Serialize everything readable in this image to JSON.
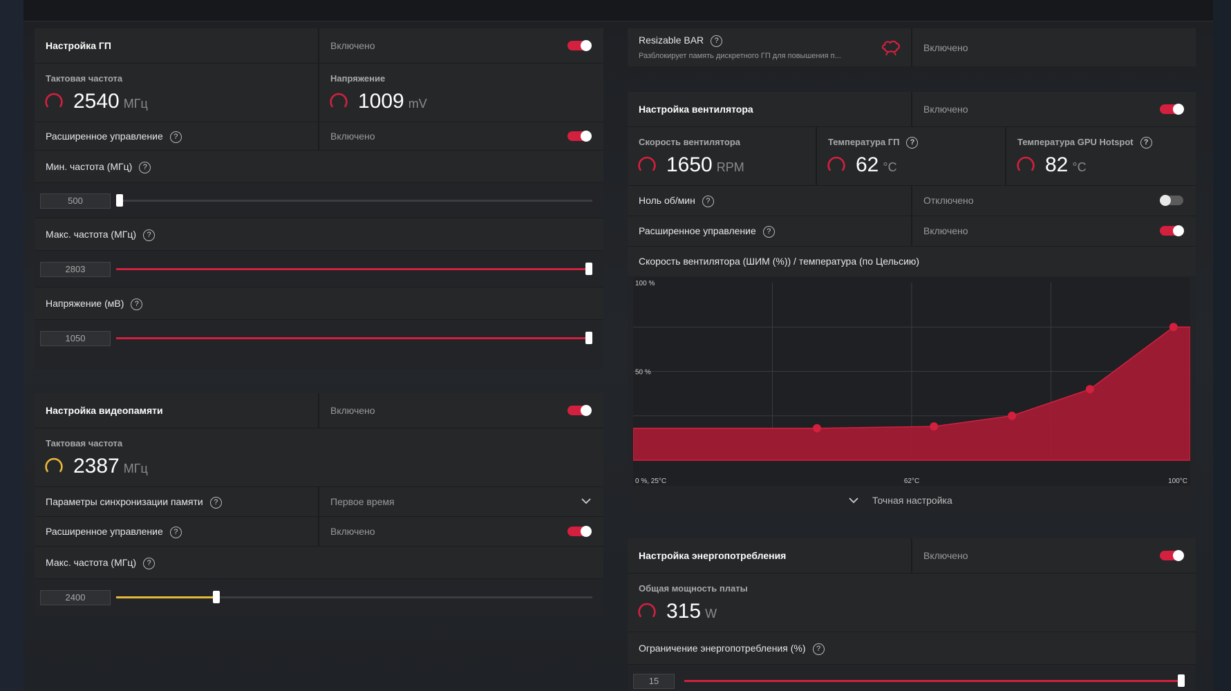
{
  "colors": {
    "accent_red": "#d3203f",
    "accent_yellow": "#e8b83a",
    "bg": "#222427"
  },
  "gpu": {
    "header_label": "Настройка ГП",
    "header_status": "Включено",
    "clock_label": "Тактовая частота",
    "clock_value": "2540",
    "clock_unit": "МГц",
    "voltage_label": "Напряжение",
    "voltage_value": "1009",
    "voltage_unit": "mV",
    "advanced_label": "Расширенное управление",
    "advanced_status": "Включено",
    "min_freq_label": "Мин. частота (МГц)",
    "min_freq_value": "500",
    "min_freq_fraction": 0.0,
    "max_freq_label": "Макс. частота (МГц)",
    "max_freq_value": "2803",
    "max_freq_fraction": 1.0,
    "volt_mv_label": "Напряжение (мВ)",
    "volt_mv_value": "1050",
    "volt_mv_fraction": 1.0
  },
  "vram": {
    "header_label": "Настройка видеопамяти",
    "header_status": "Включено",
    "clock_label": "Тактовая частота",
    "clock_value": "2387",
    "clock_unit": "МГц",
    "timing_label": "Параметры синхронизации памяти",
    "timing_value": "Первое время",
    "advanced_label": "Расширенное управление",
    "advanced_status": "Включено",
    "max_freq_label": "Макс. частота (МГц)",
    "max_freq_value": "2400",
    "max_freq_fraction": 0.2
  },
  "rebar": {
    "label": "Resizable BAR",
    "description": "Разблокирует память дискретного ГП для повышения п...",
    "status": "Включено",
    "icon": "brain-icon"
  },
  "fan": {
    "header_label": "Настройка вентилятора",
    "header_status": "Включено",
    "speed_label": "Скорость вентилятора",
    "speed_value": "1650",
    "speed_unit": "RPM",
    "gpu_temp_label": "Температура ГП",
    "gpu_temp_value": "62",
    "gpu_temp_unit": "°C",
    "hotspot_label": "Температура GPU Hotspot",
    "hotspot_value": "82",
    "hotspot_unit": "°C",
    "zero_rpm_label": "Ноль об/мин",
    "zero_rpm_status": "Отключено",
    "advanced_label": "Расширенное управление",
    "advanced_status": "Включено",
    "curve_label": "Скорость вентилятора (ШИМ (%)) / температура (по Цельсию)",
    "fine_tune_label": "Точная настройка"
  },
  "chart_data": {
    "type": "area",
    "ylim": [
      0,
      100
    ],
    "y_ticks": [
      "100 %",
      "50 %"
    ],
    "x_tick_labels": [
      "0 %, 25°C",
      "62°C",
      "100°C"
    ],
    "points": [
      {
        "x": 33,
        "y": 18
      },
      {
        "x": 54,
        "y": 19
      },
      {
        "x": 68,
        "y": 25
      },
      {
        "x": 82,
        "y": 40
      },
      {
        "x": 97,
        "y": 75
      }
    ]
  },
  "power": {
    "header_label": "Настройка энергопотребления",
    "header_status": "Включено",
    "board_power_label": "Общая мощность платы",
    "board_power_value": "315",
    "board_power_unit": "W",
    "limit_label": "Ограничение энергопотребления (%)",
    "limit_value": "15",
    "limit_fraction": 1.0
  }
}
